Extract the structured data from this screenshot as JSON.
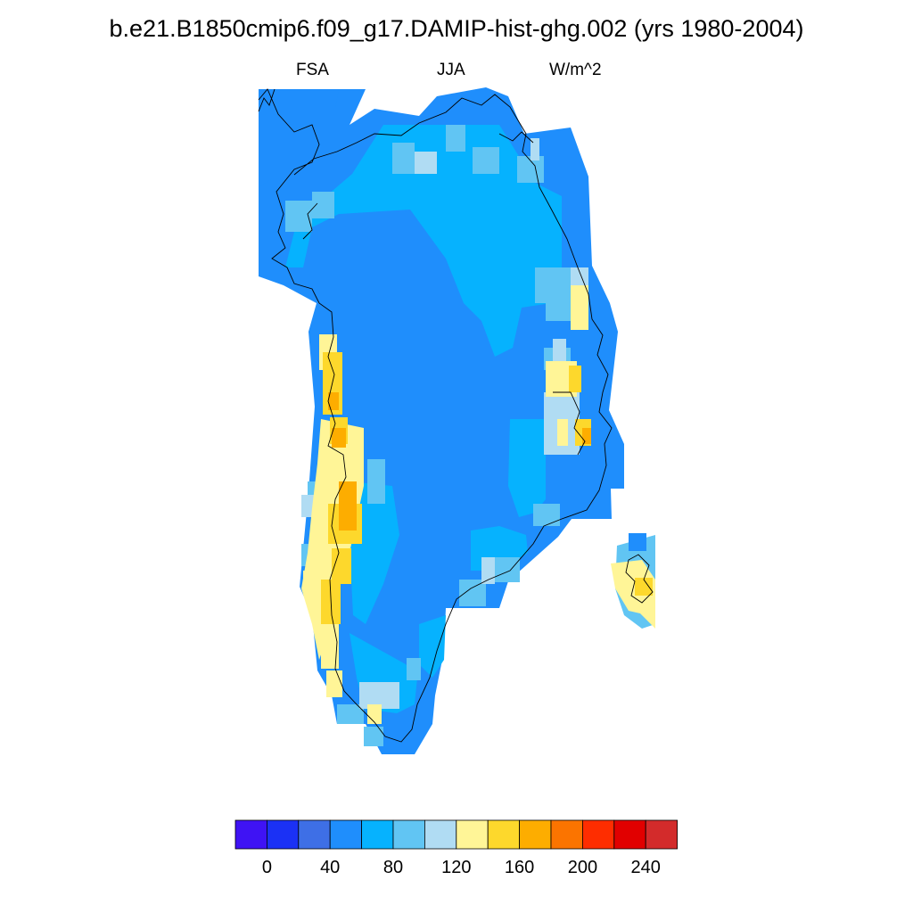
{
  "title": "b.e21.B1850cmip6.f09_g17.DAMIP-hist-ghg.002 (yrs 1980-2004)",
  "subtitle": {
    "left": "FSA",
    "center": "JJA",
    "right": "W/m^2"
  },
  "colorbar": {
    "colors": [
      "#3f13f4",
      "#1b31f5",
      "#3e6fe6",
      "#1f8efc",
      "#06b2fe",
      "#61c5f3",
      "#b0dcf3",
      "#fff597",
      "#fdd82c",
      "#fdad00",
      "#fb7400",
      "#fe2d00",
      "#e10000",
      "#d32b2b"
    ],
    "tick_labels": [
      "0",
      "40",
      "80",
      "120",
      "160",
      "200",
      "240"
    ]
  },
  "map": {
    "region": "Greenland",
    "coastline_color": "#000000"
  }
}
